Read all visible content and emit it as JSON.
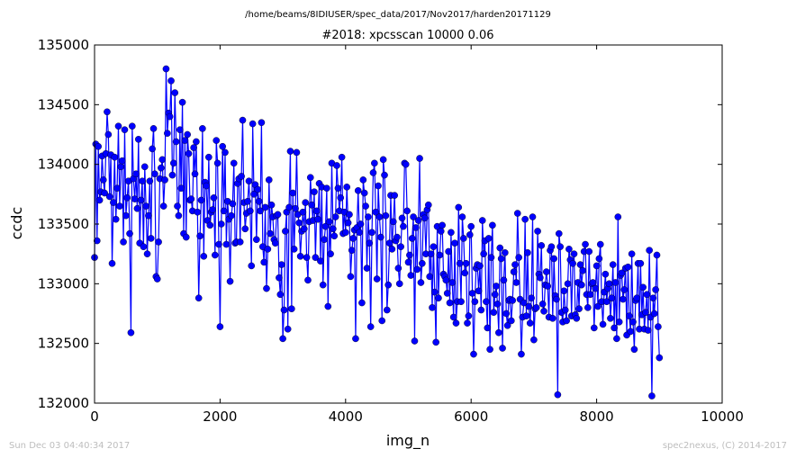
{
  "figure": {
    "suptitle": "/home/beams/8IDIUSER/spec_data/2017/Nov2017/harden20171129",
    "footer_left": "Sun Dec 03 04:40:34 2017",
    "footer_right": "spec2nexus, (C) 2014-2017"
  },
  "chart_data": {
    "type": "line",
    "title": "#2018: xpcsscan 10000 0.06",
    "xlabel": "img_n",
    "ylabel": "ccdc",
    "xlim": [
      0,
      10000
    ],
    "ylim": [
      132000,
      135000
    ],
    "xticks": [
      0,
      2000,
      4000,
      6000,
      8000,
      10000
    ],
    "yticks": [
      132000,
      132500,
      133000,
      133500,
      134000,
      134500,
      135000
    ],
    "xtick_labels": [
      "0",
      "2000",
      "4000",
      "6000",
      "8000",
      "10000"
    ],
    "ytick_labels": [
      "132000",
      "132500",
      "133000",
      "133500",
      "134000",
      "134500",
      "135000"
    ],
    "grid": false,
    "color": "#0000ff",
    "marker": "circle",
    "series": [
      {
        "x_start": 0,
        "x_step": 20,
        "values": [
          133220,
          134170,
          133360,
          134150,
          133700,
          133770,
          134070,
          133870,
          133760,
          134090,
          134440,
          134250,
          133730,
          134080,
          133170,
          133680,
          134060,
          133540,
          133800,
          134320,
          133650,
          133980,
          134030,
          133350,
          134290,
          133570,
          133720,
          133860,
          133420,
          132590,
          134320,
          133880,
          133710,
          133920,
          133630,
          134210,
          133340,
          133700,
          133860,
          133310,
          133980,
          133650,
          133250,
          133570,
          133860,
          133380,
          134130,
          134300,
          133920,
          133060,
          133040,
          133350,
          133880,
          133970,
          134040,
          133650,
          133870,
          134800,
          134260,
          134430,
          134400,
          134700,
          133910,
          134010,
          134600,
          134190,
          133650,
          133570,
          134290,
          133800,
          134520,
          133420,
          134200,
          133390,
          134250,
          134090,
          133700,
          133710,
          133610,
          134140,
          133920,
          134190,
          133600,
          132880,
          133400,
          133700,
          134300,
          133230,
          133850,
          133820,
          133530,
          134060,
          133490,
          133600,
          133620,
          133720,
          133240,
          134200,
          134010,
          133330,
          132640,
          133500,
          134150,
          133610,
          134100,
          133330,
          133690,
          133540,
          133020,
          133570,
          133670,
          134010,
          133340,
          133350,
          133840,
          133880,
          133350,
          133900,
          134370,
          133680,
          133460,
          133590,
          133690,
          133860,
          133610,
          133150,
          134340,
          133750,
          133830,
          133370,
          133790,
          133690,
          133610,
          134350,
          133310,
          133180,
          133640,
          132960,
          133290,
          133870,
          133420,
          133660,
          133560,
          133370,
          133340,
          133570,
          133580,
          133050,
          132910,
          133160,
          132540,
          132780,
          133440,
          133600,
          132620,
          133640,
          134110,
          132790,
          133760,
          133290,
          133630,
          134100,
          133580,
          133510,
          133230,
          133440,
          133600,
          133460,
          133680,
          133220,
          133030,
          133520,
          133890,
          133660,
          133530,
          133770,
          133220,
          133610,
          133540,
          133840,
          133190,
          133810,
          132990,
          133370,
          133480,
          133800,
          132810,
          133520,
          133250,
          134010,
          133460,
          133400,
          133560,
          133990,
          133800,
          133610,
          133720,
          134060,
          133420,
          133600,
          133430,
          133810,
          133510,
          133580,
          133060,
          133280,
          133380,
          133450,
          132540,
          133470,
          133780,
          133430,
          133500,
          132840,
          133870,
          133760,
          133650,
          133130,
          133560,
          133340,
          132640,
          133430,
          133930,
          134010,
          133600,
          133040,
          133820,
          133560,
          133390,
          132690,
          134040,
          133910,
          133570,
          132780,
          132990,
          133340,
          133740,
          133290,
          133520,
          133740,
          133360,
          133390,
          133130,
          133000,
          133310,
          133550,
          133480,
          134010,
          134000,
          133610,
          133180,
          133240,
          133070,
          133380,
          133560,
          132520,
          133470,
          133120,
          133530,
          134050,
          133010,
          133170,
          133580,
          133550,
          133250,
          133620,
          133660,
          133060,
          133250,
          132800,
          133310,
          132930,
          132510,
          133480,
          132880,
          133240,
          133440,
          133490,
          133080,
          133060,
          133030,
          132920,
          133270,
          132840,
          133430,
          133010,
          132720,
          133340,
          132670,
          132850,
          133640,
          133170,
          132850,
          133560,
          133380,
          133090,
          133170,
          132670,
          132730,
          133410,
          133480,
          132920,
          132410,
          132850,
          133130,
          133160,
          132940,
          133150,
          132780,
          133530,
          133250,
          133360,
          132850,
          132630,
          133380,
          132450,
          133220,
          133490,
          132760,
          132910,
          132980,
          132830,
          132590,
          133300,
          133210,
          132460,
          133030,
          133260,
          132750,
          132650,
          132860,
          132870,
          132690,
          132860,
          133100,
          133160,
          133010,
          133590,
          133220,
          132870,
          132410,
          132720,
          132840,
          133540,
          132730,
          133260,
          132810,
          132670,
          132880,
          133560,
          132530,
          132790,
          132800,
          133440,
          133080,
          133050,
          133320,
          132830,
          132770,
          132990,
          133100,
          132980,
          132720,
          133280,
          133310,
          132710,
          133210,
          132900,
          132870,
          132070,
          133420,
          133310,
          132760,
          132680,
          132940,
          132780,
          132690,
          133000,
          133290,
          133200,
          132730,
          133170,
          133250,
          132740,
          132710,
          133010,
          132790,
          133160,
          132990,
          133110,
          133270,
          133330,
          132910,
          132800,
          133270,
          132910,
          133000,
          133010,
          132630,
          132960,
          133150,
          132810,
          133210,
          133330,
          132850,
          132660,
          132930,
          133080,
          132850,
          132960,
          133000,
          132710,
          132880,
          133160,
          132630,
          133010,
          132540,
          133560,
          132680,
          133070,
          133090,
          132870,
          132950,
          133130,
          132570,
          133140,
          132730,
          132600,
          133250,
          132680,
          132450,
          132860,
          132880,
          133170,
          132620,
          133170,
          132740,
          132970,
          132620,
          132760,
          132910,
          132610,
          133280,
          132720,
          132060,
          132880,
          132750,
          132950,
          133240,
          132640,
          132380
        ]
      }
    ]
  }
}
